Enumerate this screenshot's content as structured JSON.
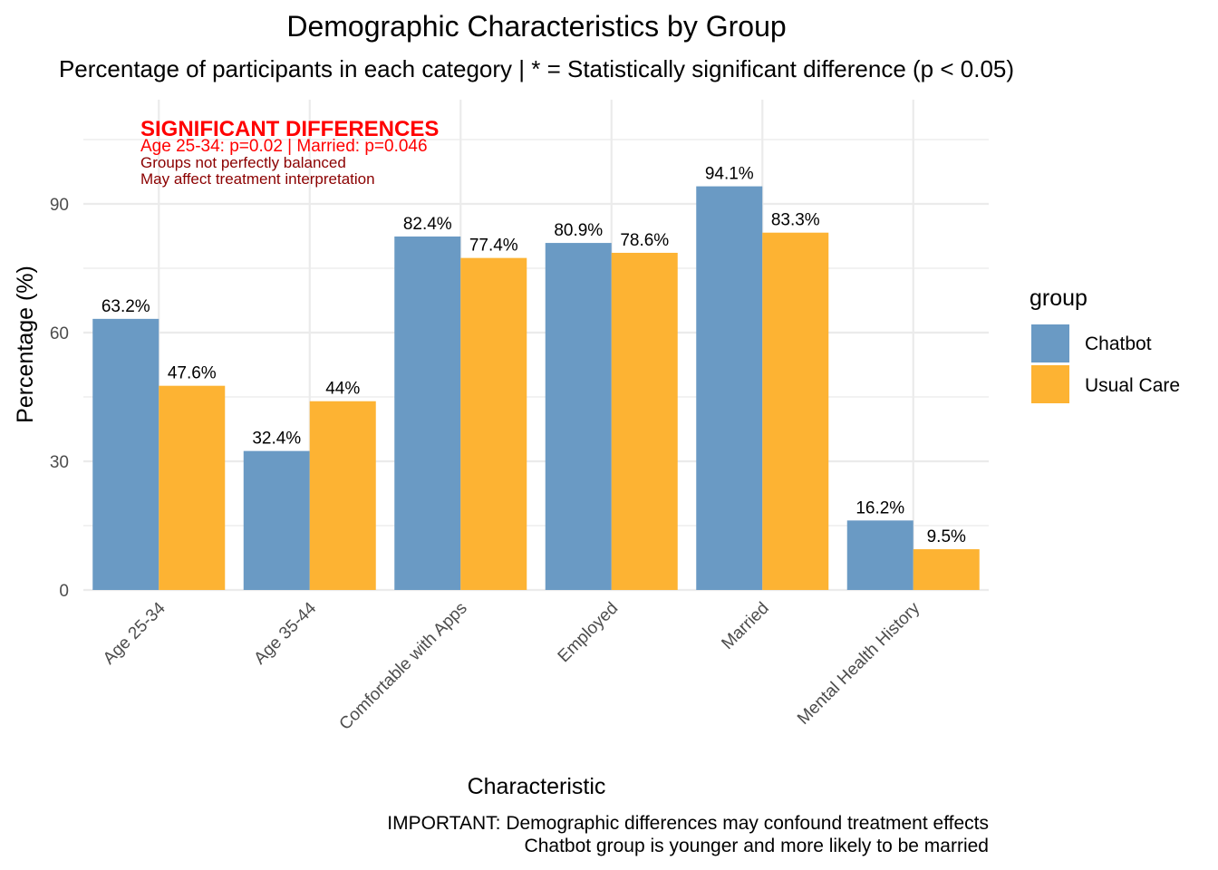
{
  "chart_data": {
    "type": "bar",
    "title": "Demographic Characteristics by Group",
    "subtitle": "Percentage of participants in each category | * = Statistically significant difference (p < 0.05)",
    "xlabel": "Characteristic",
    "ylabel": "Percentage (%)",
    "ylim": [
      0,
      105
    ],
    "yticks": [
      0,
      30,
      60,
      90
    ],
    "grid": true,
    "categories": [
      "Age 25-34",
      "Age 35-44",
      "Comfortable with Apps",
      "Employed",
      "Married",
      "Mental Health History"
    ],
    "series": [
      {
        "name": "Chatbot",
        "color": "#6a9ac4",
        "values": [
          63.2,
          32.4,
          82.4,
          80.9,
          94.1,
          16.2
        ],
        "labels": [
          "63.2%",
          "32.4%",
          "82.4%",
          "80.9%",
          "94.1%",
          "16.2%"
        ]
      },
      {
        "name": "Usual Care",
        "color": "#fdb333",
        "values": [
          47.6,
          44,
          77.4,
          78.6,
          83.3,
          9.5
        ],
        "labels": [
          "47.6%",
          "44%",
          "77.4%",
          "78.6%",
          "83.3%",
          "9.5%"
        ]
      }
    ],
    "legend": {
      "title": "group",
      "placement": "right"
    },
    "annotation": {
      "heading": "SIGNIFICANT DIFFERENCES",
      "line1": "Age 25-34: p=0.02 | Married: p=0.046",
      "line2": "Groups not perfectly balanced",
      "line3": "May affect treatment interpretation"
    },
    "caption": {
      "line1": "IMPORTANT: Demographic differences may confound treatment effects",
      "line2": "Chatbot group is younger and more likely to be married"
    }
  }
}
